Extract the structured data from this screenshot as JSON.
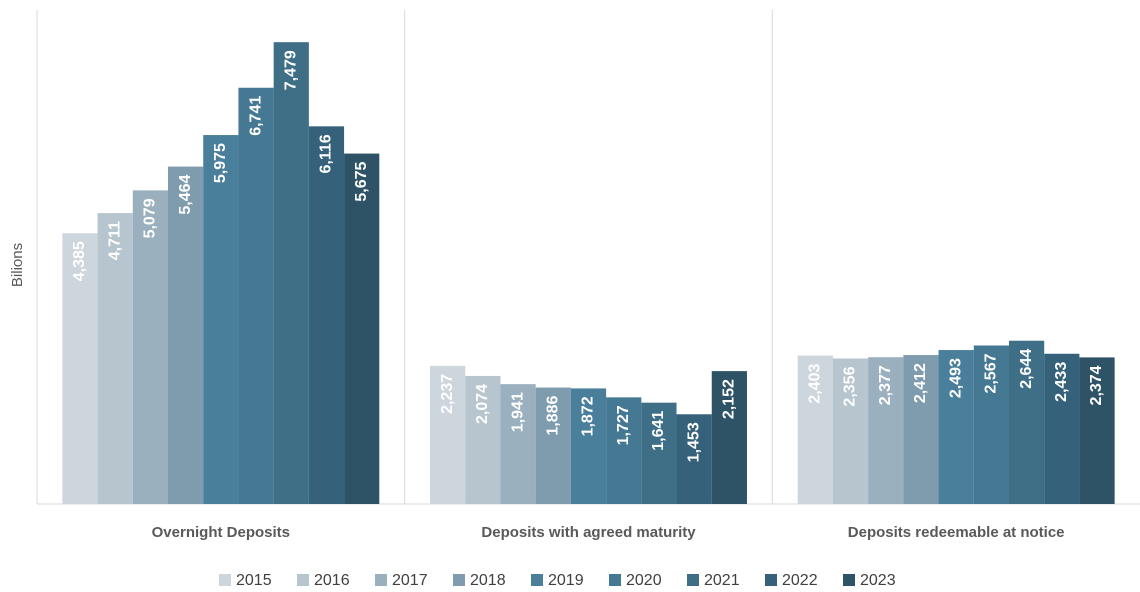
{
  "chart_data": {
    "type": "bar",
    "y_label": "Bilions",
    "categories": [
      "Overnight Deposits",
      "Deposits with agreed maturity",
      "Deposits redeemable at notice"
    ],
    "ylim": [
      0,
      8000
    ],
    "legend": "bottom",
    "series": [
      {
        "name": "2015",
        "color": "#cdd5dd",
        "values": [
          4385,
          2237,
          2403
        ],
        "value_labels": [
          "4,385",
          "2,237",
          "2,403"
        ]
      },
      {
        "name": "2016",
        "color": "#b7c5cf",
        "values": [
          4711,
          2074,
          2356
        ],
        "value_labels": [
          "4,711",
          "2,074",
          "2,356"
        ]
      },
      {
        "name": "2017",
        "color": "#9bb0bf",
        "values": [
          5079,
          1941,
          2377
        ],
        "value_labels": [
          "5,079",
          "1,941",
          "2,377"
        ]
      },
      {
        "name": "2018",
        "color": "#7f9cae",
        "values": [
          5464,
          1886,
          2412
        ],
        "value_labels": [
          "5,464",
          "1,886",
          "2,412"
        ]
      },
      {
        "name": "2019",
        "color": "#4a7f9b",
        "values": [
          5975,
          1872,
          2493
        ],
        "value_labels": [
          "5,975",
          "1,872",
          "2,493"
        ]
      },
      {
        "name": "2020",
        "color": "#457892",
        "values": [
          6741,
          1727,
          2567
        ],
        "value_labels": [
          "6,741",
          "1,727",
          "2,567"
        ]
      },
      {
        "name": "2021",
        "color": "#3e6f87",
        "values": [
          7479,
          1641,
          2644
        ],
        "value_labels": [
          "7,479",
          "1,641",
          "2,644"
        ]
      },
      {
        "name": "2022",
        "color": "#36617a",
        "values": [
          6116,
          1453,
          2433
        ],
        "value_labels": [
          "6,116",
          "1,453",
          "2,433"
        ]
      },
      {
        "name": "2023",
        "color": "#2e5366",
        "values": [
          5675,
          2152,
          2374
        ],
        "value_labels": [
          "5,675",
          "2,152",
          "2,374"
        ]
      }
    ]
  }
}
